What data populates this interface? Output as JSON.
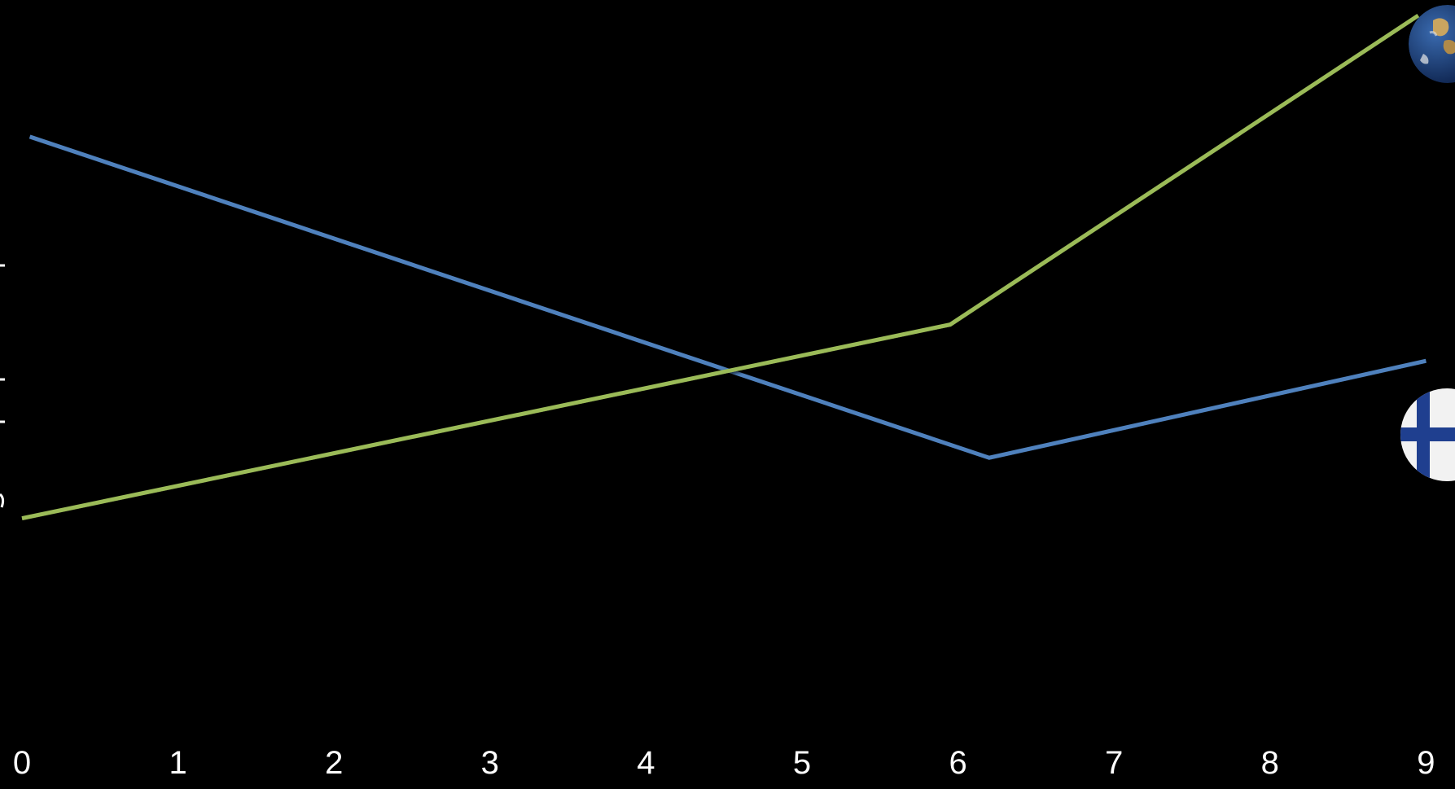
{
  "chart_data": {
    "type": "line",
    "x": [
      0,
      6,
      9
    ],
    "x_ticks": [
      "0",
      "1",
      "2",
      "3",
      "4",
      "5",
      "6",
      "7",
      "8",
      "9"
    ],
    "xlim": [
      0,
      9
    ],
    "title": "",
    "xlabel": "",
    "ylabel": "",
    "grid": false,
    "series": [
      {
        "key": "blue",
        "color": "#4f81bd",
        "x": [
          0.05,
          6.2,
          9.0
        ],
        "y": [
          0.82,
          0.29,
          0.45
        ],
        "end_icon": "finland-flag-icon"
      },
      {
        "key": "green",
        "color": "#9bbb59",
        "x": [
          0.0,
          5.95,
          8.95
        ],
        "y": [
          0.19,
          0.51,
          1.02
        ],
        "end_icon": "globe-icon"
      }
    ],
    "colors": {
      "background": "#000000",
      "text": "#ffffff",
      "flag_blue": "#1f3f8f",
      "flag_white": "#f2f2f2",
      "ocean": "#1b3f7a",
      "land": "#c9a560"
    }
  }
}
